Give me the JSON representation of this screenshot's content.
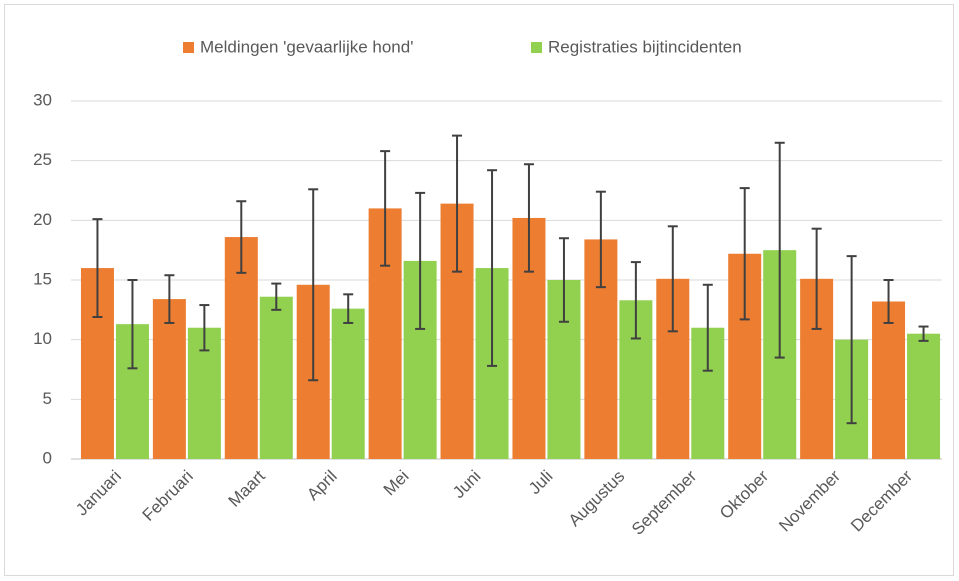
{
  "chart_data": {
    "type": "bar",
    "categories": [
      "Januari",
      "Februari",
      "Maart",
      "April",
      "Mei",
      "Juni",
      "Juli",
      "Augustus",
      "September",
      "Oktober",
      "November",
      "December"
    ],
    "series": [
      {
        "name": "Meldingen 'gevaarlijke hond'",
        "color": "#ed7d31",
        "values": [
          16.0,
          13.4,
          18.6,
          14.6,
          21.0,
          21.4,
          20.2,
          18.4,
          15.1,
          17.2,
          15.1,
          13.2
        ],
        "errors": [
          4.1,
          2.0,
          3.0,
          8.0,
          4.8,
          5.7,
          4.5,
          4.0,
          4.4,
          5.5,
          4.2,
          1.8
        ]
      },
      {
        "name": "Registraties bijtincidenten",
        "color": "#92d050",
        "values": [
          11.3,
          11.0,
          13.6,
          12.6,
          16.6,
          16.0,
          15.0,
          13.3,
          11.0,
          17.5,
          10.0,
          10.5
        ],
        "errors": [
          3.7,
          1.9,
          1.1,
          1.2,
          5.7,
          8.2,
          3.5,
          3.2,
          3.6,
          9.0,
          7.0,
          0.6
        ]
      }
    ],
    "ylim": [
      0,
      30
    ],
    "yticks": [
      0,
      5,
      10,
      15,
      20,
      25,
      30
    ],
    "grid": true,
    "legend": "top"
  }
}
